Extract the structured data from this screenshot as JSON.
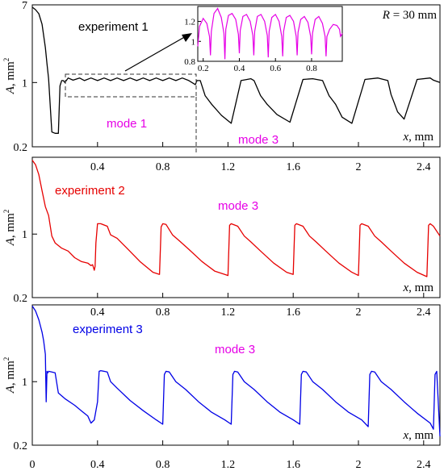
{
  "chart_data": [
    {
      "type": "line",
      "panel": "experiment 1",
      "x_ticks": [
        "0.4",
        "0.8",
        "1.2",
        "1.6",
        "2",
        "2.4"
      ],
      "y_ticks": [
        "7",
        "1",
        "0.2"
      ],
      "xlim": [
        0,
        2.5
      ],
      "ylim": [
        0.2,
        7
      ],
      "y_scale": "log",
      "xlabel": {
        "italic": "x",
        "rest": ", mm"
      },
      "ylabel": {
        "italic": "A",
        "rest": ", mm",
        "sup": "2"
      },
      "legend_text": "experiment 1",
      "mode_labels": [
        "mode 1",
        "mode 3"
      ],
      "radius_label": {
        "italic": "R",
        "rest": " = 30 mm"
      },
      "color": "#000000",
      "mode_color": "#e600e6",
      "series": [
        {
          "x": [
            0.0,
            0.02,
            0.04,
            0.06,
            0.08,
            0.09,
            0.1,
            0.12,
            0.14,
            0.16,
            0.17,
            0.18,
            0.19,
            0.2,
            0.22,
            0.25,
            0.29,
            0.32,
            0.36,
            0.4,
            0.44,
            0.48,
            0.52,
            0.56,
            0.6,
            0.64,
            0.68,
            0.72,
            0.76,
            0.8,
            0.84,
            0.88,
            0.92,
            0.96,
            1.0,
            1.01,
            1.03,
            1.06,
            1.1,
            1.16,
            1.22,
            1.28,
            1.34,
            1.36,
            1.4,
            1.44,
            1.5,
            1.58,
            1.66,
            1.72,
            1.78,
            1.82,
            1.86,
            1.9,
            1.96,
            2.04,
            2.12,
            2.18,
            2.2,
            2.22,
            2.24,
            2.28,
            2.36,
            2.44,
            2.46,
            2.48,
            2.5
          ],
          "y": [
            6.6,
            6.2,
            5.6,
            4.3,
            2.4,
            1.6,
            1.1,
            0.29,
            0.28,
            0.28,
            0.92,
            1.05,
            1.05,
            1.0,
            1.12,
            1.06,
            1.12,
            1.05,
            1.12,
            1.05,
            1.12,
            1.05,
            1.12,
            1.05,
            1.12,
            1.05,
            1.12,
            1.05,
            1.12,
            1.05,
            1.12,
            1.05,
            1.12,
            1.05,
            0.95,
            1.05,
            1.05,
            0.72,
            0.58,
            0.44,
            0.36,
            1.05,
            1.1,
            1.05,
            0.72,
            0.58,
            0.45,
            0.37,
            1.08,
            1.1,
            1.05,
            0.72,
            0.58,
            0.42,
            0.36,
            1.08,
            1.12,
            1.05,
            0.74,
            0.6,
            0.48,
            0.4,
            1.08,
            1.12,
            1.06,
            1.03,
            1.0
          ]
        }
      ],
      "inset": {
        "x_ticks": [
          "0.2",
          "0.4",
          "0.6",
          "0.8"
        ],
        "y_ticks": [
          "1.2",
          "1",
          "0.8"
        ],
        "xlim": [
          0.17,
          0.97
        ],
        "ylim": [
          0.8,
          1.35
        ],
        "color": "#e600e6",
        "x": [
          0.17,
          0.18,
          0.2,
          0.22,
          0.235,
          0.24,
          0.245,
          0.26,
          0.28,
          0.3,
          0.315,
          0.32,
          0.325,
          0.34,
          0.36,
          0.38,
          0.395,
          0.4,
          0.405,
          0.42,
          0.44,
          0.46,
          0.475,
          0.48,
          0.485,
          0.5,
          0.52,
          0.54,
          0.555,
          0.56,
          0.565,
          0.58,
          0.6,
          0.62,
          0.635,
          0.64,
          0.645,
          0.66,
          0.68,
          0.7,
          0.715,
          0.72,
          0.725,
          0.74,
          0.76,
          0.78,
          0.795,
          0.8,
          0.805,
          0.82,
          0.84,
          0.86,
          0.875,
          0.88,
          0.885,
          0.9,
          0.92,
          0.94,
          0.955,
          0.96,
          0.97
        ],
        "y": [
          0.95,
          1.15,
          1.23,
          1.18,
          1.05,
          0.86,
          1.1,
          1.28,
          1.33,
          1.24,
          1.08,
          0.82,
          1.12,
          1.26,
          1.28,
          1.22,
          1.07,
          0.88,
          1.11,
          1.25,
          1.27,
          1.2,
          1.06,
          0.86,
          1.1,
          1.25,
          1.27,
          1.2,
          1.06,
          0.84,
          1.1,
          1.24,
          1.27,
          1.2,
          1.05,
          0.85,
          1.1,
          1.24,
          1.26,
          1.2,
          1.05,
          0.86,
          1.09,
          1.22,
          1.25,
          1.19,
          1.05,
          0.87,
          1.08,
          1.22,
          1.25,
          1.18,
          1.05,
          0.85,
          1.05,
          1.12,
          1.17,
          1.16,
          1.12,
          1.05,
          1.08
        ]
      }
    },
    {
      "type": "line",
      "panel": "experiment 2",
      "x_ticks": [
        "0.4",
        "0.8",
        "1.2",
        "1.6",
        "2",
        "2.4"
      ],
      "y_ticks": [
        "1",
        "0.2"
      ],
      "xlim": [
        0,
        2.5
      ],
      "ylim": [
        0.2,
        7
      ],
      "y_scale": "log",
      "xlabel": {
        "italic": "x",
        "rest": ", mm"
      },
      "ylabel": {
        "italic": "A",
        "rest": ", mm",
        "sup": "2"
      },
      "legend_text": "experiment 2",
      "mode_labels": [
        "mode 3"
      ],
      "color": "#e60000",
      "mode_color": "#e600e6",
      "series": [
        {
          "x": [
            0.0,
            0.02,
            0.04,
            0.06,
            0.08,
            0.1,
            0.12,
            0.14,
            0.18,
            0.22,
            0.26,
            0.3,
            0.34,
            0.36,
            0.37,
            0.38,
            0.385,
            0.39,
            0.4,
            0.42,
            0.46,
            0.48,
            0.52,
            0.58,
            0.66,
            0.74,
            0.78,
            0.79,
            0.8,
            0.82,
            0.86,
            0.9,
            0.96,
            1.04,
            1.12,
            1.18,
            1.2,
            1.21,
            1.22,
            1.26,
            1.3,
            1.34,
            1.4,
            1.48,
            1.56,
            1.6,
            1.61,
            1.62,
            1.66,
            1.7,
            1.74,
            1.8,
            1.88,
            1.96,
            2.0,
            2.01,
            2.02,
            2.06,
            2.1,
            2.14,
            2.2,
            2.28,
            2.36,
            2.42,
            2.43,
            2.44,
            2.46,
            2.5
          ],
          "y": [
            6.5,
            5.8,
            4.5,
            3.0,
            2.0,
            1.6,
            0.95,
            0.8,
            0.7,
            0.65,
            0.55,
            0.5,
            0.48,
            0.45,
            0.46,
            0.4,
            0.44,
            0.8,
            1.3,
            1.3,
            1.22,
            0.98,
            0.9,
            0.7,
            0.5,
            0.38,
            0.36,
            1.2,
            1.3,
            1.28,
            0.98,
            0.85,
            0.68,
            0.5,
            0.39,
            0.36,
            0.35,
            1.25,
            1.3,
            1.22,
            0.95,
            0.82,
            0.65,
            0.48,
            0.38,
            0.36,
            1.25,
            1.3,
            1.22,
            0.95,
            0.82,
            0.65,
            0.48,
            0.38,
            0.35,
            1.25,
            1.3,
            1.22,
            0.95,
            0.82,
            0.65,
            0.48,
            0.38,
            0.34,
            1.25,
            1.3,
            1.22,
            0.95
          ]
        }
      ]
    },
    {
      "type": "line",
      "panel": "experiment 3",
      "x_ticks": [
        "0",
        "0.4",
        "0.8",
        "1.2",
        "1.6",
        "2",
        "2.4"
      ],
      "y_ticks": [
        "1",
        "0.2"
      ],
      "xlim": [
        0,
        2.5
      ],
      "ylim": [
        0.2,
        7
      ],
      "y_scale": "log",
      "xlabel": {
        "italic": "x",
        "rest": ", mm"
      },
      "ylabel": {
        "italic": "A",
        "rest": ", mm",
        "sup": "2"
      },
      "legend_text": "experiment 3",
      "mode_labels": [
        "mode 3"
      ],
      "color": "#0000e6",
      "mode_color": "#e600e6",
      "series": [
        {
          "x": [
            0.0,
            0.02,
            0.04,
            0.06,
            0.07,
            0.08,
            0.085,
            0.09,
            0.095,
            0.1,
            0.12,
            0.14,
            0.16,
            0.2,
            0.26,
            0.3,
            0.34,
            0.36,
            0.38,
            0.4,
            0.41,
            0.42,
            0.44,
            0.46,
            0.48,
            0.52,
            0.6,
            0.68,
            0.76,
            0.8,
            0.81,
            0.82,
            0.84,
            0.88,
            0.94,
            1.02,
            1.1,
            1.18,
            1.22,
            1.23,
            1.24,
            1.26,
            1.3,
            1.36,
            1.44,
            1.52,
            1.6,
            1.64,
            1.65,
            1.66,
            1.68,
            1.72,
            1.78,
            1.86,
            1.94,
            2.02,
            2.06,
            2.07,
            2.08,
            2.1,
            2.14,
            2.2,
            2.28,
            2.36,
            2.44,
            2.46,
            2.47,
            2.48,
            2.5
          ],
          "y": [
            6.8,
            6.0,
            4.8,
            3.5,
            2.8,
            2.0,
            0.6,
            1.3,
            1.25,
            1.3,
            1.28,
            1.25,
            0.75,
            0.65,
            0.55,
            0.48,
            0.42,
            0.35,
            0.38,
            0.6,
            1.3,
            1.32,
            1.3,
            1.28,
            1.0,
            0.85,
            0.62,
            0.48,
            0.38,
            0.34,
            1.2,
            1.3,
            1.28,
            1.0,
            0.82,
            0.6,
            0.46,
            0.38,
            0.34,
            1.2,
            1.3,
            1.28,
            1.0,
            0.82,
            0.6,
            0.46,
            0.38,
            0.34,
            1.2,
            1.3,
            1.28,
            1.0,
            0.82,
            0.6,
            0.46,
            0.38,
            0.32,
            1.2,
            1.3,
            1.28,
            1.0,
            0.82,
            0.6,
            0.45,
            0.35,
            0.3,
            1.2,
            1.3,
            0.25
          ]
        }
      ]
    }
  ]
}
